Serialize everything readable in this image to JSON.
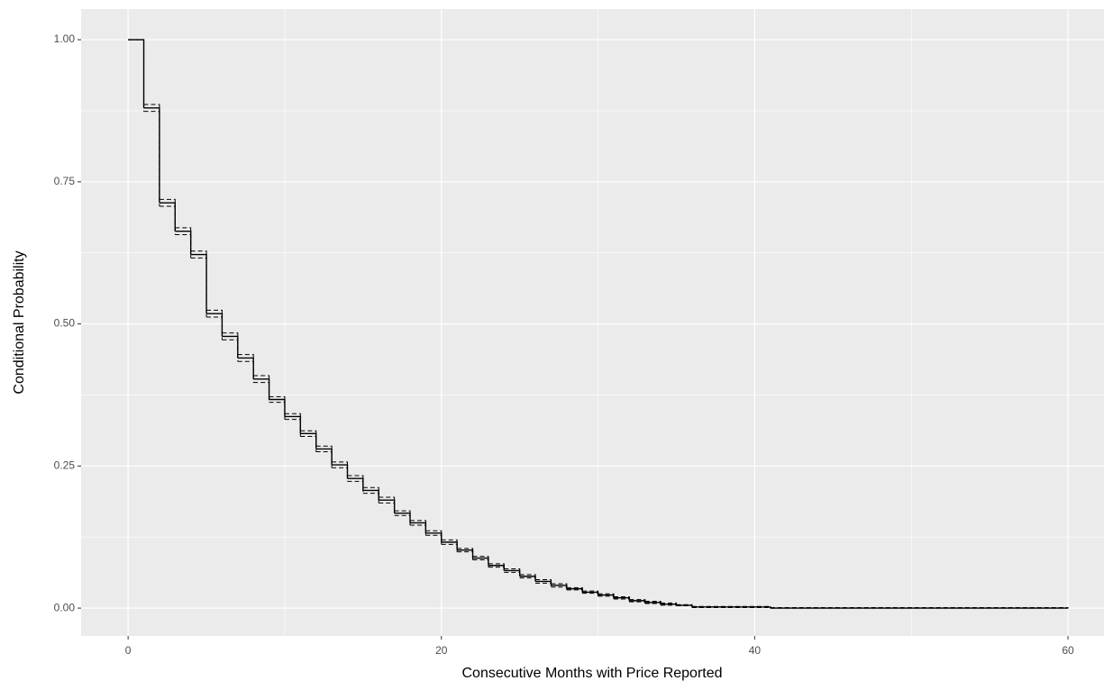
{
  "chart_data": {
    "type": "step",
    "x_label": "Consecutive Months with Price Reported",
    "y_label": "Conditional Probability",
    "x": [
      0,
      1,
      2,
      3,
      4,
      5,
      6,
      7,
      8,
      9,
      10,
      11,
      12,
      13,
      14,
      15,
      16,
      17,
      18,
      19,
      20,
      21,
      22,
      23,
      24,
      25,
      26,
      27,
      28,
      29,
      30,
      31,
      32,
      33,
      34,
      35,
      36,
      41,
      60
    ],
    "series": [
      {
        "color": "#000000",
        "dash": false,
        "values": [
          1,
          0.88,
          0.713,
          0.663,
          0.622,
          0.518,
          0.478,
          0.44,
          0.403,
          0.367,
          0.337,
          0.307,
          0.28,
          0.252,
          0.228,
          0.207,
          0.19,
          0.167,
          0.15,
          0.132,
          0.116,
          0.102,
          0.088,
          0.075,
          0.066,
          0.056,
          0.047,
          0.04,
          0.034,
          0.028,
          0.023,
          0.018,
          0.013,
          0.01,
          0.007,
          0.005,
          0.002,
          0.0,
          0.0
        ]
      },
      {
        "color": "#000000",
        "dash": true,
        "values": [
          1,
          0.886,
          0.719,
          0.669,
          0.628,
          0.524,
          0.484,
          0.446,
          0.409,
          0.372,
          0.342,
          0.312,
          0.285,
          0.257,
          0.233,
          0.212,
          0.195,
          0.171,
          0.154,
          0.136,
          0.12,
          0.105,
          0.091,
          0.078,
          0.069,
          0.059,
          0.05,
          0.043,
          0.036,
          0.03,
          0.025,
          0.02,
          0.015,
          0.012,
          0.009,
          0.006,
          0.003,
          0.001,
          0.0
        ]
      },
      {
        "color": "#000000",
        "dash": true,
        "values": [
          1,
          0.874,
          0.707,
          0.657,
          0.616,
          0.512,
          0.472,
          0.434,
          0.397,
          0.362,
          0.332,
          0.302,
          0.275,
          0.247,
          0.223,
          0.202,
          0.185,
          0.163,
          0.146,
          0.128,
          0.112,
          0.099,
          0.085,
          0.072,
          0.063,
          0.053,
          0.044,
          0.037,
          0.032,
          0.026,
          0.021,
          0.016,
          0.011,
          0.008,
          0.005,
          0.004,
          0.001,
          0.0,
          0.0
        ]
      }
    ],
    "xlim": [
      -3,
      62.3
    ],
    "ylim": [
      -0.049,
      1.054
    ],
    "xticks": [
      0,
      20,
      40,
      60
    ],
    "yticks": [
      {
        "value": 0,
        "label": "0.00"
      },
      {
        "value": 0.25,
        "label": "0.25"
      },
      {
        "value": 0.5,
        "label": "0.50"
      },
      {
        "value": 0.75,
        "label": "0.75"
      },
      {
        "value": 1,
        "label": "1.00"
      }
    ],
    "xminor": [
      10,
      30,
      50
    ],
    "yminor": [
      0.125,
      0.375,
      0.625,
      0.875
    ],
    "grid": true,
    "panel_color": "#ebebeb"
  }
}
